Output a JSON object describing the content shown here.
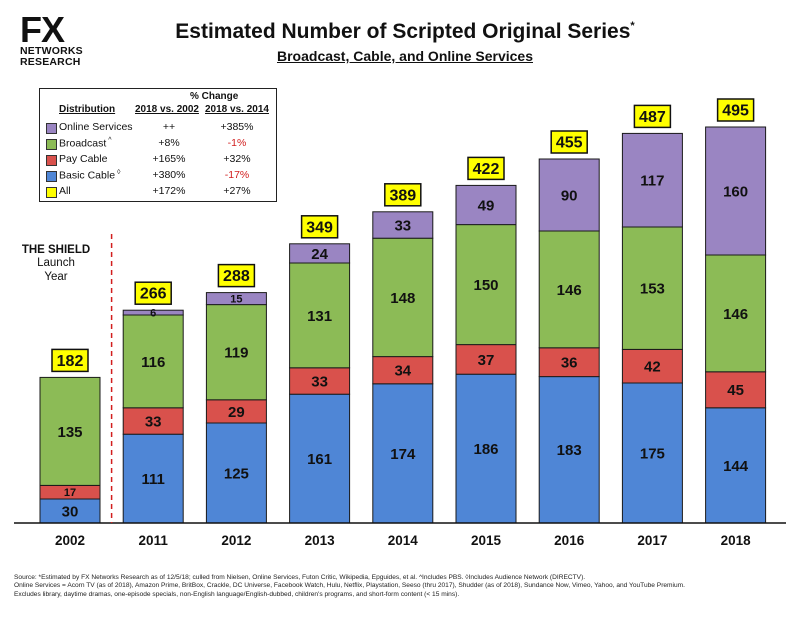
{
  "logo": {
    "mark": "FX",
    "line1": "NETWORKS",
    "line2": "RESEARCH"
  },
  "title": "Estimated Number of Scripted Original Series",
  "title_mark": "*",
  "subtitle": "Broadcast, Cable, and Online Services",
  "annotation": {
    "line1": "THE SHIELD",
    "line2": "Launch",
    "line3": "Year"
  },
  "legend": {
    "heading": "% Change",
    "col_label": "Distribution",
    "col1": "2018 vs. 2002",
    "col2": "2018 vs. 2014",
    "rows": [
      {
        "label": "Online Services",
        "mark": "",
        "v1": "++",
        "v2": "+385%",
        "color": "#9a85c2"
      },
      {
        "label": "Broadcast",
        "mark": "^",
        "v1": "+8%",
        "v2": "-1%",
        "color": "#8cbb56"
      },
      {
        "label": "Pay Cable",
        "mark": "",
        "v1": "+165%",
        "v2": "+32%",
        "color": "#d9514c"
      },
      {
        "label": "Basic Cable",
        "mark": "◊",
        "v1": "+380%",
        "v2": "-17%",
        "color": "#4f86d6"
      },
      {
        "label": "All",
        "mark": "",
        "v1": "+172%",
        "v2": "+27%",
        "color": "#ffff00"
      }
    ]
  },
  "chart_data": {
    "type": "bar",
    "stacked": true,
    "categories": [
      "2002",
      "2011",
      "2012",
      "2013",
      "2014",
      "2015",
      "2016",
      "2017",
      "2018"
    ],
    "series": [
      {
        "name": "Basic Cable",
        "color": "#4f86d6",
        "values": [
          30,
          111,
          125,
          161,
          174,
          186,
          183,
          175,
          144
        ]
      },
      {
        "name": "Pay Cable",
        "color": "#d9514c",
        "values": [
          17,
          33,
          29,
          33,
          34,
          37,
          36,
          42,
          45
        ]
      },
      {
        "name": "Broadcast",
        "color": "#8cbb56",
        "values": [
          135,
          116,
          119,
          131,
          148,
          150,
          146,
          153,
          146
        ]
      },
      {
        "name": "Online Services",
        "color": "#9a85c2",
        "values": [
          0,
          6,
          15,
          24,
          33,
          49,
          90,
          117,
          160
        ]
      }
    ],
    "totals": [
      "182",
      "266",
      "288",
      "349",
      "389",
      "422",
      "455",
      "487",
      "495"
    ],
    "total_label_color": "#ffff00",
    "ylim": [
      0,
      520
    ],
    "divider_after_category": "2002",
    "title": "Estimated Number of Scripted Original Series",
    "xlabel": "",
    "ylabel": "",
    "grid": false,
    "legend_position": "top-left"
  },
  "footnote": {
    "line1": "Source: *Estimated by FX Networks Research as of 12/5/18; culled from Nielsen, Online Services, Futon Critic, Wikipedia, Epguides, et al. ^Includes PBS. ◊Includes Audience Network (DIRECTV).",
    "line2": "Online Services = Acorn TV (as of 2018), Amazon Prime, BritBox, Crackle, DC Universe, Facebook Watch, Hulu, Netflix, Playstation, Seeso (thru 2017), Shudder (as of 2018), Sundance Now, Vimeo, Yahoo, and YouTube Premium.",
    "line3": "Excludes library, daytime dramas, one-episode specials, non-English language/English-dubbed, children's programs, and short-form content (< 15 mins)."
  }
}
